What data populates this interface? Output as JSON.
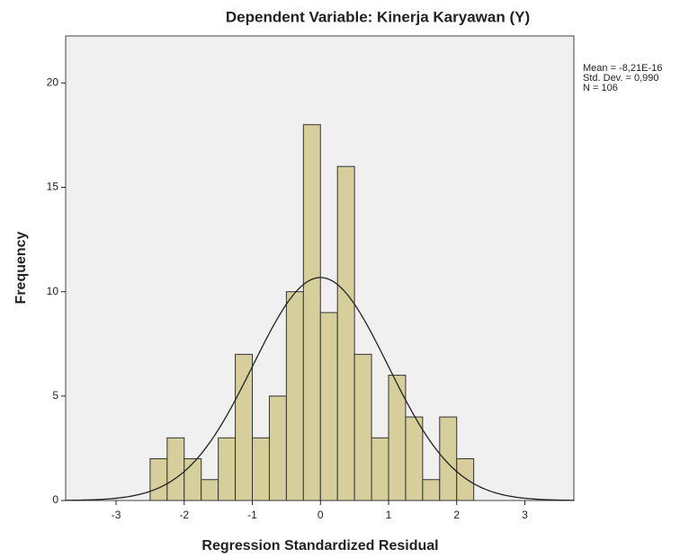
{
  "chart_data": {
    "type": "histogram",
    "title": "Dependent Variable: Kinerja Karyawan (Y)",
    "x_label": "Regression Standardized Residual",
    "y_label": "Frequency",
    "bins": [
      -2.5,
      -2.25,
      -2,
      -1.75,
      -1.5,
      -1.25,
      -1,
      -0.75,
      -0.5,
      -0.25,
      0,
      0.25,
      0.5,
      0.75,
      1,
      1.25,
      1.5,
      1.75,
      2,
      2.25
    ],
    "values": [
      2,
      3,
      2,
      1,
      3,
      7,
      3,
      5,
      10,
      18,
      9,
      16,
      7,
      3,
      6,
      4,
      1,
      4,
      2
    ],
    "color": "#d6cf9c",
    "xlim": [
      -3.74,
      3.72
    ],
    "ylim": [
      0,
      22.25
    ],
    "xticks": [
      -3,
      -2,
      -1,
      0,
      1,
      2,
      3
    ],
    "yticks": [
      0,
      5,
      10,
      15,
      20
    ],
    "normal_curve": true,
    "mean": -8.21e-16,
    "std_dev": 0.99,
    "n": 106,
    "stats_labels": [
      "Mean = -8,21E-16",
      "Std. Dev. = 0,990",
      "N = 106"
    ]
  }
}
